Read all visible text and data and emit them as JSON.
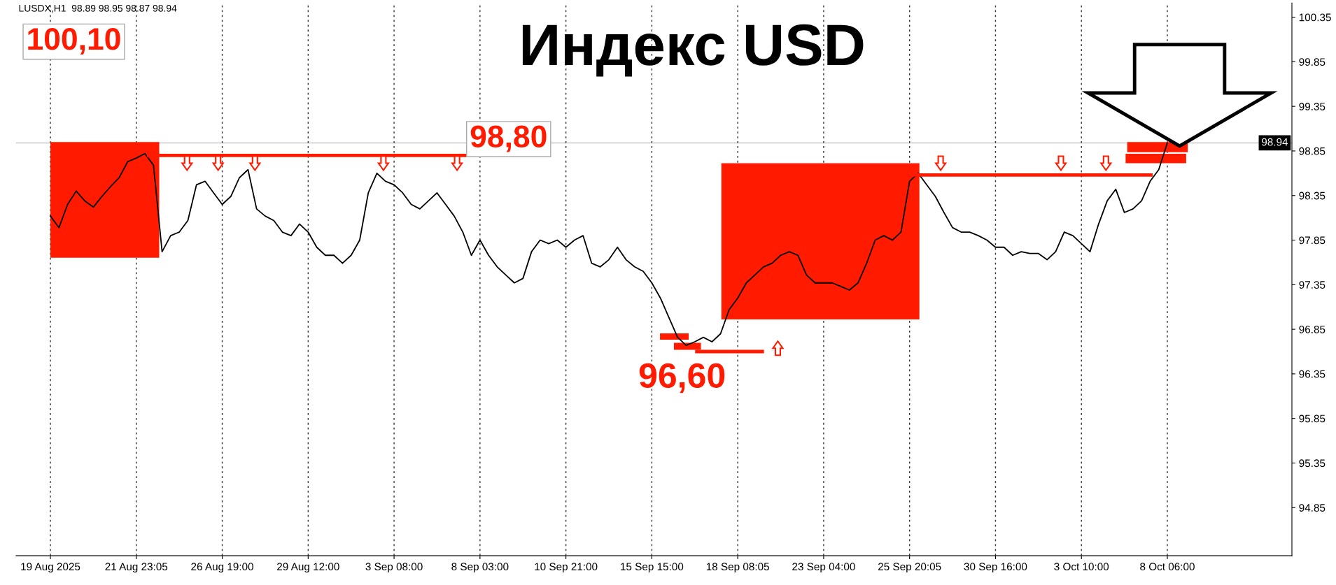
{
  "chart_data": {
    "type": "line",
    "title": "Индекс USD",
    "categories": [
      "19 Aug 2025",
      null,
      null,
      null,
      null,
      null,
      null,
      null,
      null,
      null,
      "21 Aug 23:05",
      null,
      null,
      null,
      null,
      null,
      null,
      null,
      null,
      null,
      "26 Aug 19:00",
      null,
      null,
      null,
      null,
      null,
      null,
      null,
      null,
      null,
      "29 Aug 12:00",
      null,
      null,
      null,
      null,
      null,
      null,
      null,
      null,
      null,
      "3 Sep 08:00",
      null,
      null,
      null,
      null,
      null,
      null,
      null,
      null,
      null,
      "8 Sep 03:00",
      null,
      null,
      null,
      null,
      null,
      null,
      null,
      null,
      null,
      "10 Sep 21:00",
      null,
      null,
      null,
      null,
      null,
      null,
      null,
      null,
      null,
      "15 Sep 15:00",
      null,
      null,
      null,
      null,
      null,
      null,
      null,
      null,
      null,
      "18 Sep 08:05",
      null,
      null,
      null,
      null,
      null,
      null,
      null,
      null,
      null,
      "23 Sep 04:00",
      null,
      null,
      null,
      null,
      null,
      null,
      null,
      null,
      null,
      "25 Sep 20:05",
      null,
      null,
      null,
      null,
      null,
      null,
      null,
      null,
      null,
      "30 Sep 16:00",
      null,
      null,
      null,
      null,
      null,
      null,
      null,
      null,
      null,
      "3 Oct 10:00",
      null,
      null,
      null,
      null,
      null,
      null,
      null,
      null,
      null,
      "8 Oct 06:00",
      null,
      null,
      null,
      null,
      null,
      null,
      null,
      null,
      null,
      null,
      null,
      null,
      null,
      null
    ],
    "series": [
      {
        "color": "#000000",
        "values": [
          98.12,
          97.99,
          98.25,
          98.4,
          98.29,
          98.22,
          98.34,
          98.45,
          98.55,
          98.73,
          98.77,
          98.82,
          98.69,
          97.72,
          97.9,
          97.94,
          98.07,
          98.47,
          98.51,
          98.38,
          98.25,
          98.34,
          98.55,
          98.64,
          98.2,
          98.12,
          98.07,
          97.94,
          97.9,
          98.03,
          97.94,
          97.77,
          97.68,
          97.68,
          97.59,
          97.68,
          97.85,
          98.38,
          98.6,
          98.51,
          98.47,
          98.38,
          98.25,
          98.2,
          98.29,
          98.38,
          98.25,
          98.12,
          97.94,
          97.68,
          97.85,
          97.68,
          97.55,
          97.46,
          97.37,
          97.42,
          97.72,
          97.85,
          97.81,
          97.85,
          97.77,
          97.85,
          97.9,
          97.59,
          97.55,
          97.63,
          97.77,
          97.63,
          97.55,
          97.5,
          97.37,
          97.2,
          96.98,
          96.76,
          96.67,
          96.71,
          96.76,
          96.71,
          96.8,
          97.07,
          97.2,
          97.37,
          97.46,
          97.55,
          97.59,
          97.68,
          97.72,
          97.68,
          97.46,
          97.37,
          97.37,
          97.37,
          97.33,
          97.29,
          97.37,
          97.59,
          97.85,
          97.9,
          97.85,
          97.94,
          98.51,
          98.6,
          98.47,
          98.34,
          98.16,
          97.99,
          97.94,
          97.94,
          97.9,
          97.85,
          97.77,
          97.77,
          97.68,
          97.72,
          97.7,
          97.7,
          97.63,
          97.72,
          97.94,
          97.9,
          97.81,
          97.72,
          98.03,
          98.29,
          98.42,
          98.16,
          98.2,
          98.29,
          98.51,
          98.64,
          98.94,
          null,
          null,
          null,
          null,
          null,
          null,
          null,
          null,
          null,
          null,
          null,
          null,
          null,
          null
        ]
      }
    ],
    "ylim": [
      94.31,
      100.51
    ],
    "yticks": [
      94.85,
      95.35,
      95.85,
      96.35,
      96.85,
      97.35,
      97.85,
      98.35,
      98.85,
      99.35,
      99.85,
      100.35
    ],
    "grid": "x",
    "line_style": "solid",
    "ref_lines": [
      {
        "axis": "y",
        "value": 98.94,
        "label": "98.94",
        "color": "#c8c8c8"
      },
      {
        "axis": "y",
        "value": 98.8,
        "label": "98,80",
        "color": "#ff1a00"
      },
      {
        "axis": "y",
        "value": 98.58,
        "color": "#ff1a00"
      },
      {
        "axis": "y",
        "value": 96.6,
        "label": "96,60",
        "color": "#ff1a00"
      }
    ],
    "annotations": [
      "LUSDX,H1  98.89 98.95 98.87 98.94",
      "100,10"
    ]
  }
}
